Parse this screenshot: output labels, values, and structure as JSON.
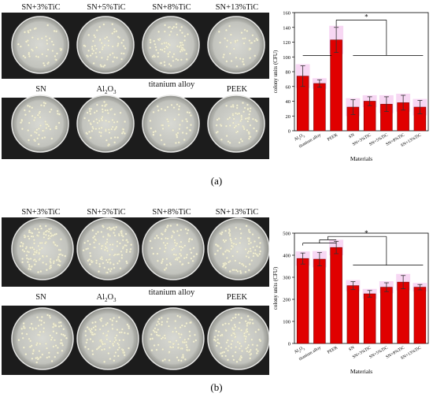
{
  "panels": [
    {
      "id": "a",
      "caption": "(a)",
      "photo": {
        "top_labels": [
          "SN+3%TiC",
          "SN+5%TiC",
          "SN+8%TiC",
          "SN+13%TiC"
        ],
        "bottom_labels": [
          "SN",
          "Al2O3",
          "titanium alloy",
          "PEEK"
        ],
        "colony_density": [
          0.35,
          0.45,
          0.55,
          0.3,
          0.4,
          0.55,
          0.35,
          0.5
        ]
      },
      "chart_data": {
        "type": "bar",
        "categories": [
          "Al2O3",
          "titanium alloy",
          "PEEK",
          "SN",
          "SN+3%TiC",
          "SN+5%TiC",
          "SN+8%TiC",
          "SN+13%TiC"
        ],
        "values": [
          74,
          64,
          123,
          32,
          40,
          36,
          38,
          32
        ],
        "errors": [
          14,
          5,
          17,
          10,
          6,
          10,
          10,
          9
        ],
        "xlabel": "Materials",
        "ylabel": "colony units (CFU)",
        "ylim": [
          0,
          160
        ],
        "yticks": [
          0,
          20,
          40,
          60,
          80,
          100,
          120,
          140,
          160
        ],
        "significance": "*",
        "bar_color": "#e00000"
      }
    },
    {
      "id": "b",
      "caption": "(b)",
      "photo": {
        "top_labels": [
          "SN+3%TiC",
          "SN+5%TiC",
          "SN+8%TiC",
          "SN+13%TiC"
        ],
        "bottom_labels": [
          "SN",
          "Al2O3",
          "titanium alloy",
          "PEEK"
        ],
        "colony_density": [
          0.9,
          0.85,
          0.6,
          0.75,
          0.65,
          0.7,
          0.65,
          0.8
        ]
      },
      "chart_data": {
        "type": "bar",
        "categories": [
          "Al2O3",
          "titanium alloy",
          "PEEK",
          "SN",
          "SN+3%TiC",
          "SN+5%TiC",
          "SN+8%TiC",
          "SN+13%TiC"
        ],
        "values": [
          385,
          382,
          435,
          262,
          225,
          255,
          278,
          255
        ],
        "errors": [
          25,
          30,
          28,
          18,
          15,
          20,
          30,
          12
        ],
        "xlabel": "Materials",
        "ylabel": "colony units (CFU)",
        "ylim": [
          0,
          500
        ],
        "yticks": [
          0,
          100,
          200,
          300,
          400,
          500
        ],
        "significance": "*",
        "bar_color": "#e00000"
      }
    }
  ]
}
